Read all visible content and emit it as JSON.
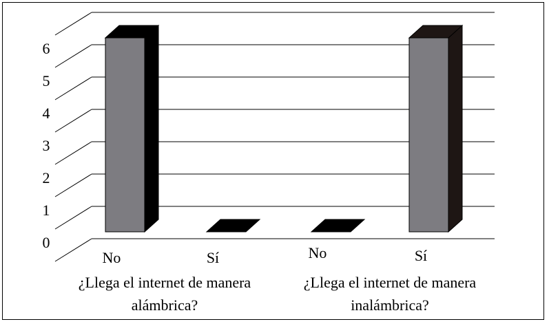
{
  "chart_data": {
    "type": "bar",
    "title": "",
    "xlabel": "",
    "ylabel": "",
    "ylim": [
      0,
      6
    ],
    "yticks": [
      "0",
      "1",
      "2",
      "3",
      "4",
      "5",
      "6"
    ],
    "grid": true,
    "legend": "none",
    "style": "3d-column",
    "categories": [
      "No",
      "Sí",
      "No",
      "Sí"
    ],
    "groups": [
      {
        "label_lines": [
          "¿Llega el internet de manera",
          "alámbrica?"
        ],
        "categories": [
          "No",
          "Sí"
        ]
      },
      {
        "label_lines": [
          "¿Llega el internet de manera",
          "inalámbrica?"
        ],
        "categories": [
          "No",
          "Sí"
        ]
      }
    ],
    "series": [
      {
        "values": [
          6,
          0,
          0,
          6
        ]
      }
    ],
    "colors": {
      "bar_front": "#7d7c81",
      "bar_side": "#000000",
      "bar_top": "#000000",
      "bar_side_alt": "#1e1614",
      "bar_top_alt": "#1e1614",
      "grid": "#000000"
    }
  }
}
